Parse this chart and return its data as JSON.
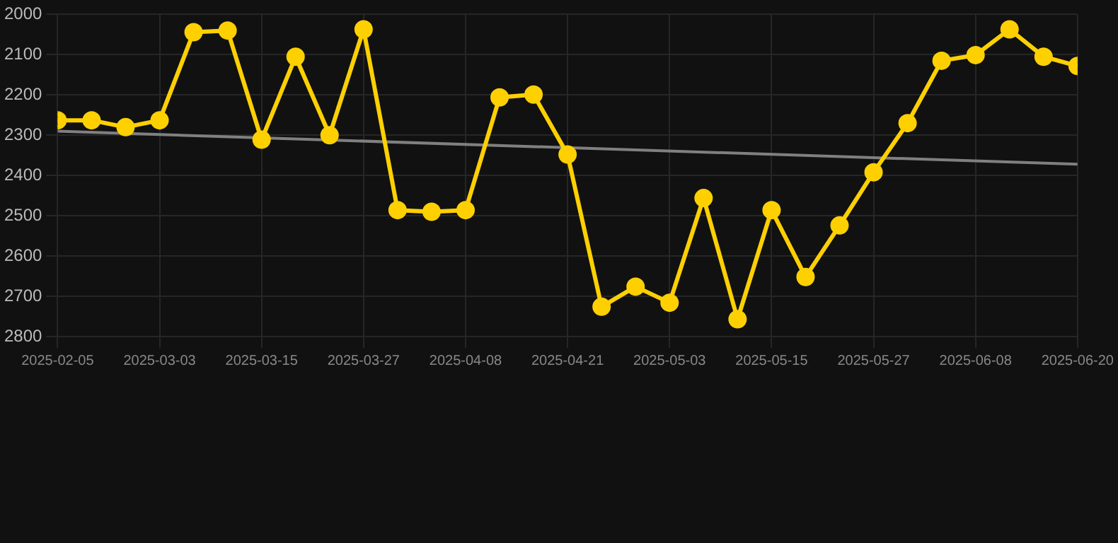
{
  "chart_data": {
    "type": "line",
    "categories": [
      "2025-02-05",
      null,
      null,
      "2025-03-03",
      null,
      null,
      "2025-03-15",
      null,
      null,
      "2025-03-27",
      null,
      null,
      "2025-04-08",
      null,
      null,
      "2025-04-21",
      null,
      null,
      "2025-05-03",
      null,
      null,
      "2025-05-15",
      null,
      null,
      "2025-05-27",
      null,
      null,
      "2025-06-08",
      null,
      null,
      "2025-06-20"
    ],
    "series": [
      {
        "color": "#ffd000",
        "marker": "circle",
        "values": [
          2263,
          2263,
          2280,
          2263,
          2044,
          2040,
          2311,
          2105,
          2300,
          2037,
          2486,
          2490,
          2486,
          2206,
          2199,
          2348,
          2726,
          2676,
          2716,
          2456,
          2757,
          2486,
          2652,
          2524,
          2392,
          2270,
          2115,
          2101,
          2037,
          2105,
          2128
        ]
      },
      {
        "color": "#808080",
        "marker": "none",
        "values": [
          2290,
          null,
          null,
          null,
          null,
          null,
          null,
          null,
          null,
          null,
          null,
          null,
          null,
          null,
          null,
          null,
          null,
          null,
          null,
          null,
          null,
          null,
          null,
          null,
          null,
          null,
          null,
          null,
          null,
          null,
          2372
        ]
      }
    ],
    "ylim": [
      2800,
      2000
    ],
    "yticks": [
      2000,
      2100,
      2200,
      2300,
      2400,
      2500,
      2600,
      2700,
      2800
    ],
    "grid": true,
    "legend": false
  }
}
